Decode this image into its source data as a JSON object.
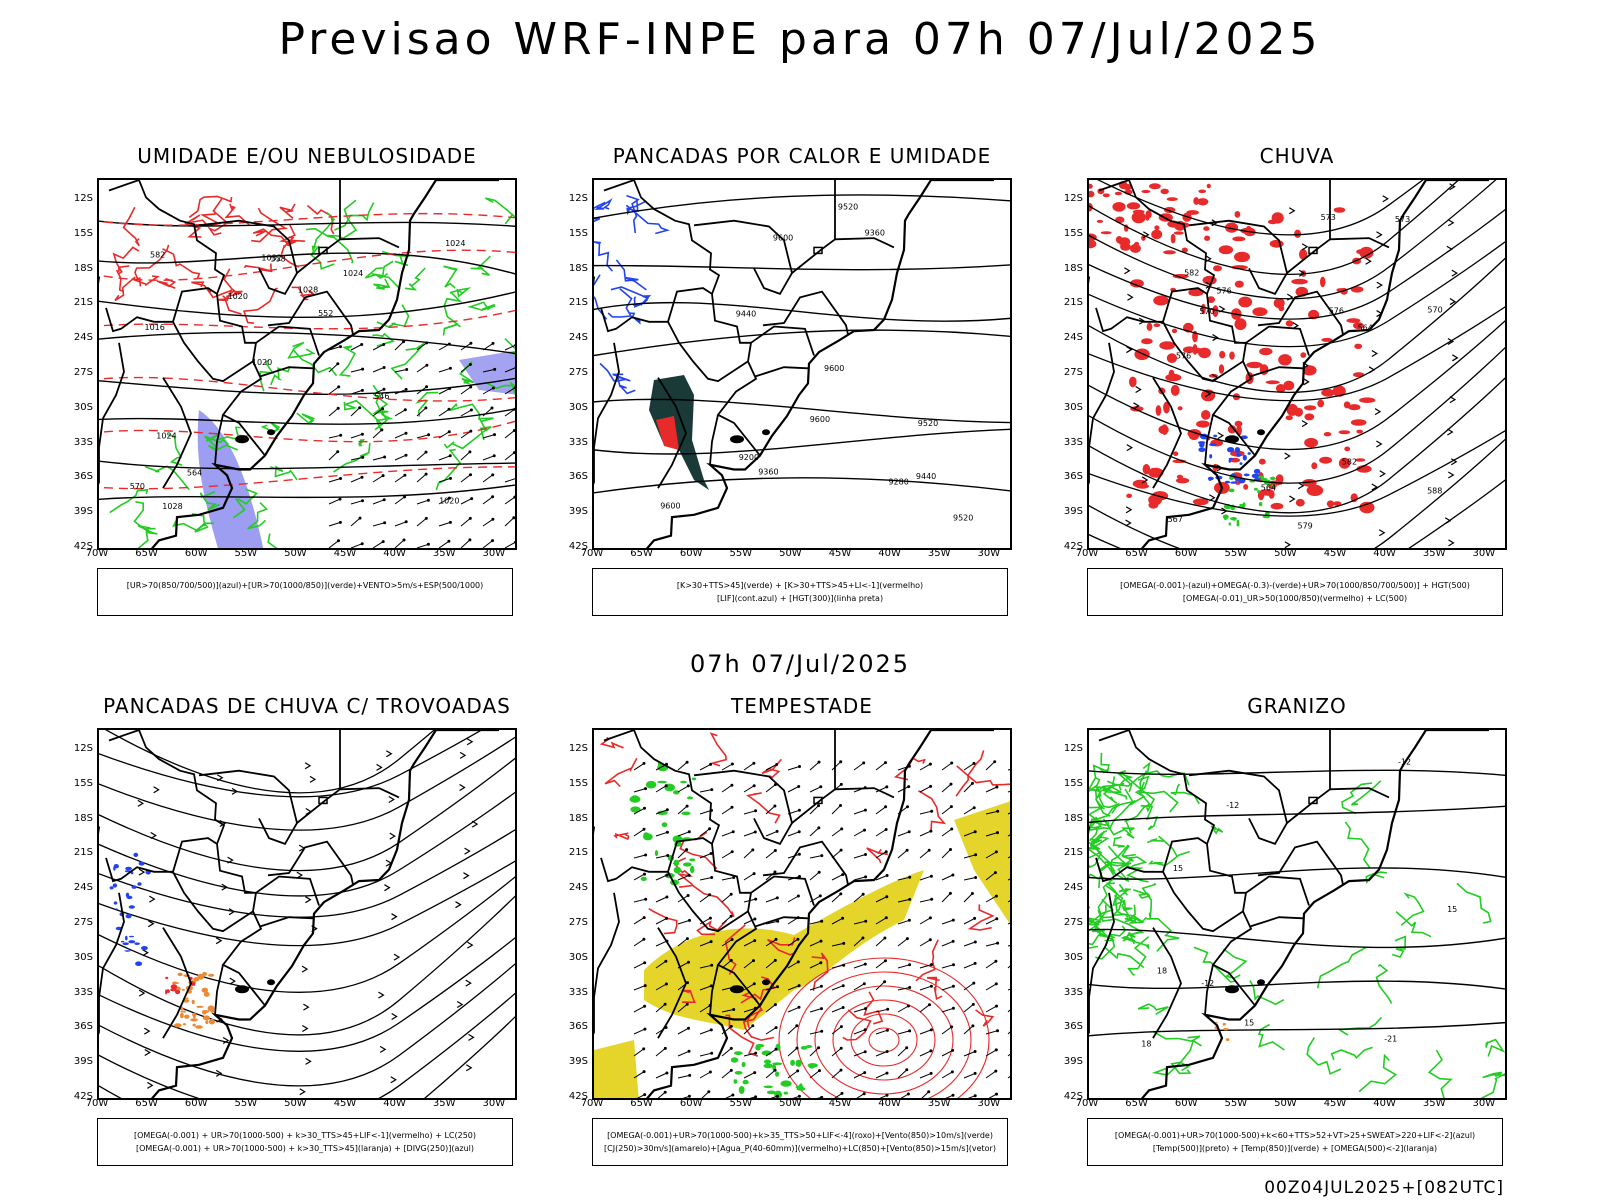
{
  "main_title": "Previsao WRF-INPE  para 07h 07/Jul/2025",
  "mid_title": "07h 07/Jul/2025",
  "footer": "00Z04JUL2025+[082UTC]",
  "axes": {
    "lat_labels": [
      "12S",
      "15S",
      "18S",
      "21S",
      "24S",
      "27S",
      "30S",
      "33S",
      "36S",
      "39S",
      "42S"
    ],
    "lon_labels": [
      "70W",
      "65W",
      "60W",
      "55W",
      "50W",
      "45W",
      "40W",
      "35W",
      "30W"
    ]
  },
  "colors": {
    "red": "#e82a2a",
    "green": "#22cc22",
    "blue": "#2244ee",
    "lavender": "#8c8cee",
    "yellow": "#e5d52a",
    "orange": "#ee8833",
    "darkgreen": "#1a3a38"
  },
  "panels": [
    {
      "title": "UMIDADE E/OU NEBULOSIDADE",
      "legend": [
        "[UR>70(850/700/500)](azul)+[UR>70(1000/850)](verde)+VENTO>5m/s+ESP(500/1000)"
      ],
      "contour_labels": [
        "1020",
        "1016",
        "1024",
        "1020",
        "1024",
        "1028",
        "1032",
        "1028",
        "1024",
        "1020",
        "570",
        "564",
        "558",
        "552",
        "546",
        "582"
      ]
    },
    {
      "title": "PANCADAS POR CALOR E UMIDADE",
      "legend": [
        "[K>30+TTS>45](verde) + [K>30+TTS>45+LI<-1](vermelho)",
        "[LIF](cont.azul) + [HGT(300)](linha preta)"
      ],
      "contour_labels": [
        "9600",
        "9520",
        "9600",
        "9600",
        "9600",
        "9520",
        "9440",
        "9360",
        "9280",
        "9200",
        "9520",
        "9440",
        "9360"
      ]
    },
    {
      "title": "CHUVA",
      "legend": [
        "[OMEGA(-0.001)-(azul)+OMEGA(-0.3)-(verde)+UR>70(1000/850/700/500)] + HGT(500)",
        "[OMEGA(-0.01)_UR>50(1000/850)(vermelho) + LC(500)"
      ],
      "contour_labels": [
        "582",
        "576",
        "570",
        "564",
        "588",
        "582",
        "576",
        "573",
        "579",
        "576",
        "570",
        "567",
        "564",
        "573"
      ]
    },
    {
      "title": "PANCADAS DE CHUVA C/ TROVOADAS",
      "legend": [
        "[OMEGA(-0.001) + UR>70(1000-500) + k>30_TTS>45+LIF<-1](vermelho) + LC(250)",
        "[OMEGA(-0.001) + UR>70(1000-500) + k>30_TTS>45](laranja) + [DIVG(250)](azul)"
      ],
      "contour_labels": []
    },
    {
      "title": "TEMPESTADE",
      "legend": [
        "[OMEGA(-0.001)+UR>70(1000-500)+k>35_TTS>50+LIF<-4](roxo)+[Vento(850)>10m/s](verde)",
        "[CJ(250)>30m/s](amarelo)+[Agua_P(40-60mm)](vermelho)+LC(850)+[Vento(850)>15m/s](vetor)"
      ],
      "contour_labels": []
    },
    {
      "title": "GRANIZO",
      "legend": [
        "[OMEGA(-0.001)+UR>70(1000-500)+k<60+TTS>52+VT>25+SWEAT>220+LIF<-2](azul)",
        "[Temp(500)](preto) + [Temp(850)](verde) + [OMEGA(500)<-2](laranja)"
      ],
      "contour_labels": [
        "-12",
        "-12",
        "-12",
        "-21",
        "15",
        "18",
        "15",
        "18",
        "15"
      ]
    }
  ]
}
